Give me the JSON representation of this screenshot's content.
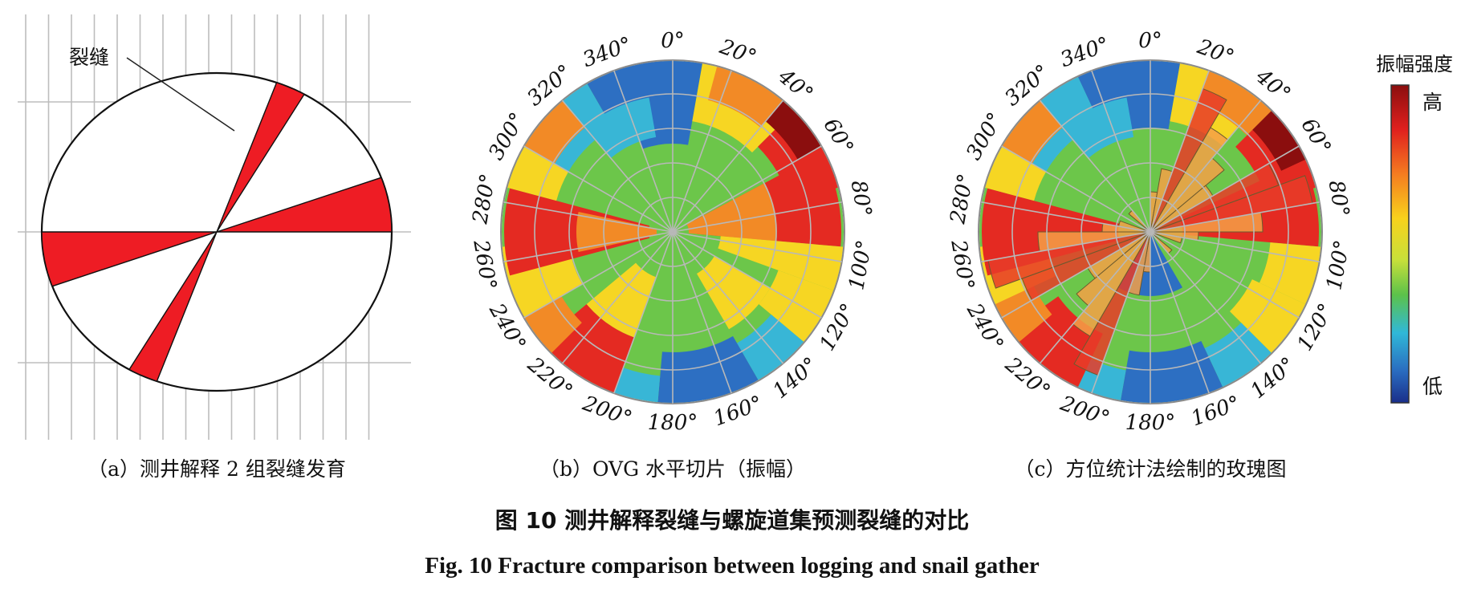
{
  "panel_a": {
    "fracture_label": "裂缝",
    "caption": "（a）测井解释 2 组裂缝发育",
    "fractures": [
      {
        "from_deg": 20,
        "to_deg": 30,
        "color": "#ee1c24"
      },
      {
        "from_deg": 70,
        "to_deg": 90,
        "color": "#ee1c24"
      }
    ]
  },
  "panel_b": {
    "caption": "（b）OVG 水平切片（振幅）"
  },
  "panel_c": {
    "caption": "（c）方位统计法绘制的玫瑰图"
  },
  "angle_labels": [
    "0°",
    "20°",
    "40°",
    "60°",
    "80°",
    "100°",
    "120°",
    "140°",
    "160°",
    "180°",
    "200°",
    "220°",
    "240°",
    "260°",
    "280°",
    "300°",
    "320°",
    "340°"
  ],
  "colorbar": {
    "title": "振幅强度",
    "high": "高",
    "low": "低",
    "colors": [
      "#8b0e0e",
      "#e0201e",
      "#f57c20",
      "#f8d21c",
      "#c8e03a",
      "#5cc24a",
      "#30b8d8",
      "#2a6cc0",
      "#1a2f8a"
    ]
  },
  "figure_title_cn": "图 10    测井解释裂缝与螺旋道集预测裂缝的对比",
  "figure_title_en": "Fig. 10    Fracture comparison between logging and snail gather"
}
